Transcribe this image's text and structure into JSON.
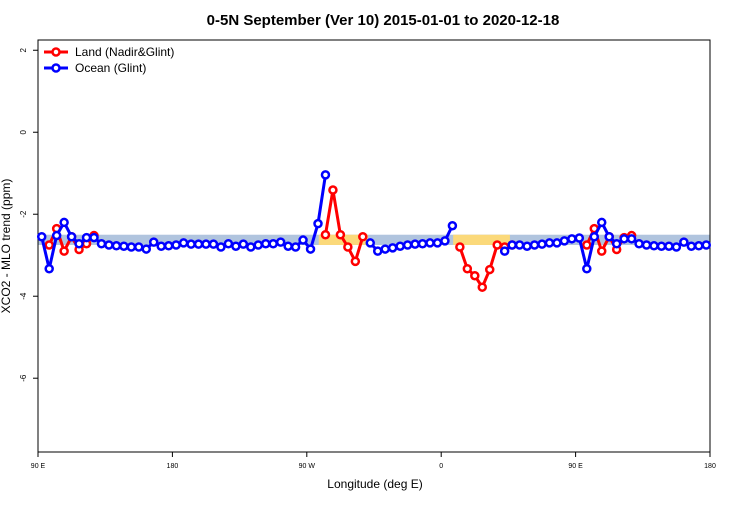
{
  "chart_data": {
    "type": "line",
    "title": "0-5N September (Ver 10)   2015-01-01 to 2020-12-18",
    "x_label": "Longitude (deg E)",
    "y_label": "XCO2 - MLO trend (ppm)",
    "xlim": [
      90,
      540
    ],
    "ylim": [
      -7.8,
      2.25
    ],
    "xticks": [
      {
        "value": 90,
        "label": "90 E"
      },
      {
        "value": 180,
        "label": "180"
      },
      {
        "value": 270,
        "label": "90 W"
      },
      {
        "value": 360,
        "label": "0"
      },
      {
        "value": 450,
        "label": "90 E"
      },
      {
        "value": 540,
        "label": "180"
      }
    ],
    "yticks": [
      2,
      0,
      -2,
      -4,
      -6
    ],
    "legend": "topleft",
    "bands": [
      {
        "x": [
          90,
          540
        ],
        "y": [
          -2.5,
          -2.75
        ],
        "color": "#b0c4de"
      },
      {
        "x": [
          278,
          311
        ],
        "y": [
          -2.5,
          -2.75
        ],
        "color": "#fbd97a"
      },
      {
        "x": [
          368,
          406
        ],
        "y": [
          -2.5,
          -2.75
        ],
        "color": "#fbd97a"
      }
    ],
    "x": [
      92.5,
      97.5,
      102.5,
      107.5,
      112.5,
      117.5,
      122.5,
      127.5,
      132.5,
      137.5,
      142.5,
      147.5,
      152.5,
      157.5,
      162.5,
      167.5,
      172.5,
      177.5,
      182.5,
      187.5,
      192.5,
      197.5,
      202.5,
      207.5,
      212.5,
      217.5,
      222.5,
      227.5,
      232.5,
      237.5,
      242.5,
      247.5,
      252.5,
      257.5,
      262.5,
      267.5,
      272.5,
      277.5,
      282.5,
      287.5,
      292.5,
      297.5,
      302.5,
      307.5,
      312.5,
      317.5,
      322.5,
      327.5,
      332.5,
      337.5,
      342.5,
      347.5,
      352.5,
      357.5,
      362.5,
      367.5,
      372.5,
      377.5,
      382.5,
      387.5,
      392.5,
      397.5,
      402.5,
      407.5,
      412.5,
      417.5,
      422.5,
      427.5,
      432.5,
      437.5,
      442.5,
      447.5,
      452.5,
      457.5,
      462.5,
      467.5,
      472.5,
      477.5,
      482.5,
      487.5,
      492.5,
      497.5,
      502.5,
      507.5,
      512.5,
      517.5,
      522.5,
      527.5,
      532.5,
      537.5
    ],
    "series": [
      {
        "name": "Land (Nadir&Glint)",
        "color": "#ff0000",
        "values": [
          null,
          -2.75,
          -2.35,
          -2.9,
          -2.55,
          -2.86,
          -2.72,
          -2.52,
          null,
          null,
          null,
          null,
          null,
          null,
          null,
          null,
          null,
          null,
          null,
          null,
          null,
          null,
          null,
          null,
          null,
          null,
          null,
          null,
          null,
          null,
          null,
          null,
          null,
          null,
          null,
          null,
          null,
          null,
          -2.5,
          -1.41,
          -2.5,
          -2.8,
          -3.15,
          -2.55,
          null,
          null,
          null,
          null,
          null,
          null,
          null,
          null,
          null,
          null,
          null,
          null,
          -2.8,
          -3.33,
          -3.5,
          -3.78,
          -3.35,
          -2.75,
          -2.8,
          -2.75,
          null,
          null,
          null,
          null,
          null,
          null,
          null,
          null,
          null,
          -2.75,
          -2.35,
          -2.9,
          -2.55,
          -2.86,
          -2.57,
          -2.52,
          null,
          null,
          null,
          null,
          null,
          null,
          null,
          null,
          null,
          null
        ]
      },
      {
        "name": "Ocean (Glint)",
        "color": "#0000ff",
        "values": [
          -2.55,
          -3.33,
          -2.52,
          -2.2,
          -2.55,
          -2.72,
          -2.57,
          -2.57,
          -2.72,
          -2.75,
          -2.77,
          -2.78,
          -2.8,
          -2.8,
          -2.85,
          -2.68,
          -2.78,
          -2.77,
          -2.75,
          -2.7,
          -2.73,
          -2.73,
          -2.73,
          -2.73,
          -2.8,
          -2.72,
          -2.78,
          -2.73,
          -2.8,
          -2.75,
          -2.72,
          -2.72,
          -2.68,
          -2.78,
          -2.8,
          -2.63,
          -2.85,
          -2.23,
          -1.04,
          null,
          null,
          null,
          null,
          null,
          -2.7,
          -2.9,
          -2.85,
          -2.82,
          -2.78,
          -2.75,
          -2.73,
          -2.72,
          -2.7,
          -2.7,
          -2.65,
          -2.28,
          null,
          null,
          null,
          null,
          null,
          null,
          -2.9,
          -2.75,
          -2.75,
          -2.78,
          -2.75,
          -2.73,
          -2.7,
          -2.7,
          -2.65,
          -2.6,
          -2.58,
          -3.33,
          -2.55,
          -2.2,
          -2.55,
          -2.72,
          -2.6,
          -2.6,
          -2.72,
          -2.75,
          -2.77,
          -2.78,
          -2.78,
          -2.8,
          -2.68,
          -2.78,
          -2.77,
          -2.75
        ]
      }
    ]
  }
}
